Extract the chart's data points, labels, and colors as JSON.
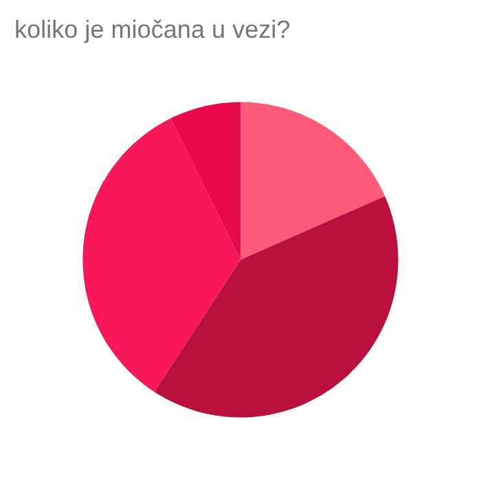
{
  "chart_data": {
    "type": "pie",
    "title": "koliko je miočana u vezi?",
    "categories": [
      null,
      null,
      null,
      null
    ],
    "values": [
      18.4,
      40.8,
      33.5,
      7.3
    ],
    "colors": [
      "#fb5b79",
      "#b80f3d",
      "#f7185a",
      "#e8094b"
    ]
  }
}
